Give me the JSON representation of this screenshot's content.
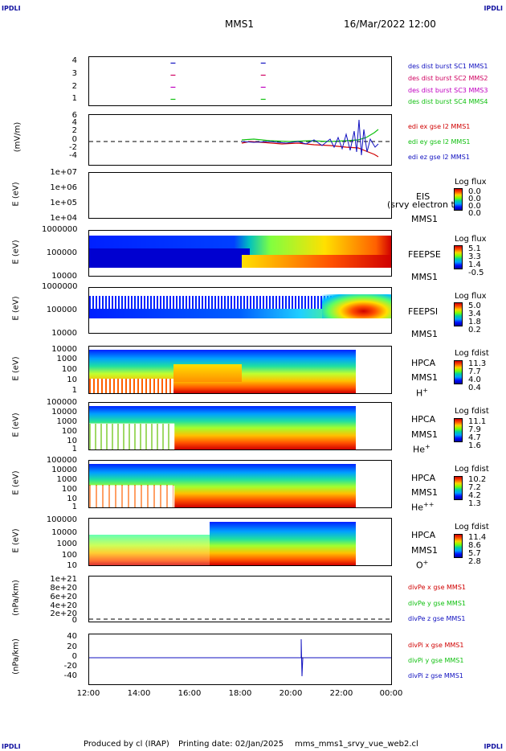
{
  "corners": {
    "tl": "IPDLI",
    "tr": "IPDLI",
    "bl": "IPDLI",
    "br": "IPDLI"
  },
  "header": {
    "mission": "MMS1",
    "date": "16/Mar/2022 12:00"
  },
  "footer": {
    "produced": "Produced by cl (IRAP)",
    "printing": "Printing date: 02/Jan/2025",
    "file": "mms_mms1_srvy_vue_web2.cl"
  },
  "x_axis": {
    "ticks": [
      "12:00",
      "14:00",
      "16:00",
      "18:00",
      "20:00",
      "22:00",
      "00:00"
    ]
  },
  "chart_data": [
    {
      "type": "scatter",
      "name": "burst",
      "ylim": [
        0.5,
        4.5
      ],
      "yticks": [
        "4",
        "3",
        "2",
        "1"
      ],
      "legend": [
        "des dist burst SC1 MMS1",
        "des dist burst SC2 MMS2",
        "des dist burst SC3 MMS3",
        "des dist burst SC4 MMS4"
      ],
      "colors": [
        "#1010c0",
        "#d00060",
        "#c000c0",
        "#10c010"
      ],
      "x": [
        "15:20",
        "18:55"
      ],
      "series": [
        {
          "values": [
            4,
            4
          ]
        },
        {
          "values": [
            3,
            3
          ]
        },
        {
          "values": [
            2,
            2
          ]
        },
        {
          "values": [
            1,
            1
          ]
        }
      ]
    },
    {
      "type": "line",
      "name": "edi",
      "ylabel": "(mV/m)",
      "yticks": [
        "6",
        "4",
        "2",
        "0",
        "-2",
        "-4"
      ],
      "legend": [
        "edi ex gse l2 MMS1",
        "edi ey gse l2 MMS1",
        "edi ez gse l2 MMS1"
      ],
      "colors": [
        "#d00000",
        "#10c010",
        "#1010c0"
      ],
      "x_start": "18:00",
      "x_end": "23:30"
    },
    {
      "type": "heatmap",
      "name": "EIS",
      "ylabel": "E (eV)",
      "yticks": [
        "1e+07",
        "1e+06",
        "1e+05",
        "1e+04"
      ],
      "label1": "EIS",
      "label2": "MMS1",
      "overlay": "(srvy electron to",
      "cbar_title": "Log flux",
      "cbar_values": [
        "0.0",
        "0.0",
        "0.0",
        "0.0"
      ]
    },
    {
      "type": "heatmap",
      "name": "FEEPSE",
      "ylabel": "E (eV)",
      "yticks": [
        "1000000",
        "100000",
        "10000"
      ],
      "label1": "FEEPSE",
      "label2": "MMS1",
      "cbar_title": "Log flux",
      "cbar_values": [
        "5.1",
        "3.3",
        "1.4",
        "-0.5"
      ]
    },
    {
      "type": "heatmap",
      "name": "FEEPSI",
      "ylabel": "E (eV)",
      "yticks": [
        "1000000",
        "100000",
        "10000"
      ],
      "label1": "FEEPSI",
      "label2": "MMS1",
      "cbar_title": "Log flux",
      "cbar_values": [
        "5.0",
        "3.4",
        "1.8",
        "0.2"
      ]
    },
    {
      "type": "heatmap",
      "name": "HPCA H+",
      "ylabel": "E (eV)",
      "yticks": [
        "10000",
        "1000",
        "100",
        "10",
        "1"
      ],
      "label1": "HPCA",
      "label2": "MMS1",
      "species": "H",
      "species_sup": "+",
      "cbar_title": "Log fdist",
      "cbar_values": [
        "11.3",
        "7.7",
        "4.0",
        "0.4"
      ]
    },
    {
      "type": "heatmap",
      "name": "HPCA He+",
      "ylabel": "E (eV)",
      "yticks": [
        "100000",
        "10000",
        "1000",
        "100",
        "10",
        "1"
      ],
      "label1": "HPCA",
      "label2": "MMS1",
      "species": "He",
      "species_sup": "+",
      "cbar_title": "Log fdist",
      "cbar_values": [
        "11.1",
        "7.9",
        "4.7",
        "1.6"
      ]
    },
    {
      "type": "heatmap",
      "name": "HPCA He++",
      "ylabel": "E (eV)",
      "yticks": [
        "100000",
        "10000",
        "1000",
        "100",
        "10",
        "1"
      ],
      "label1": "HPCA",
      "label2": "MMS1",
      "species": "He",
      "species_sup": "++",
      "cbar_title": "Log fdist",
      "cbar_values": [
        "10.2",
        "7.2",
        "4.2",
        "1.3"
      ]
    },
    {
      "type": "heatmap",
      "name": "HPCA O+",
      "ylabel": "E (eV)",
      "yticks": [
        "100000",
        "10000",
        "1000",
        "100",
        "10"
      ],
      "label1": "HPCA",
      "label2": "MMS1",
      "species": "O",
      "species_sup": "+",
      "cbar_title": "Log fdist",
      "cbar_values": [
        "11.4",
        "8.6",
        "5.7",
        "2.8"
      ]
    },
    {
      "type": "line",
      "name": "divPe",
      "ylabel": "(nPa/km)",
      "yticks": [
        "1e+21",
        "8e+20",
        "6e+20",
        "4e+20",
        "2e+20",
        "0"
      ],
      "legend": [
        "divPe x gse MMS1",
        "divPe y gse MMS1",
        "divPe z gse MMS1"
      ],
      "colors": [
        "#d00000",
        "#10c010",
        "#1010c0"
      ]
    },
    {
      "type": "line",
      "name": "divPi",
      "ylabel": "(nPa/km)",
      "yticks": [
        "40",
        "20",
        "0",
        "-20",
        "-40"
      ],
      "legend": [
        "divPi x gse MMS1",
        "divPi y gse MMS1",
        "divPi z gse MMS1"
      ],
      "colors": [
        "#d00000",
        "#10c010",
        "#1010c0"
      ],
      "spike_time": "20:27"
    }
  ]
}
